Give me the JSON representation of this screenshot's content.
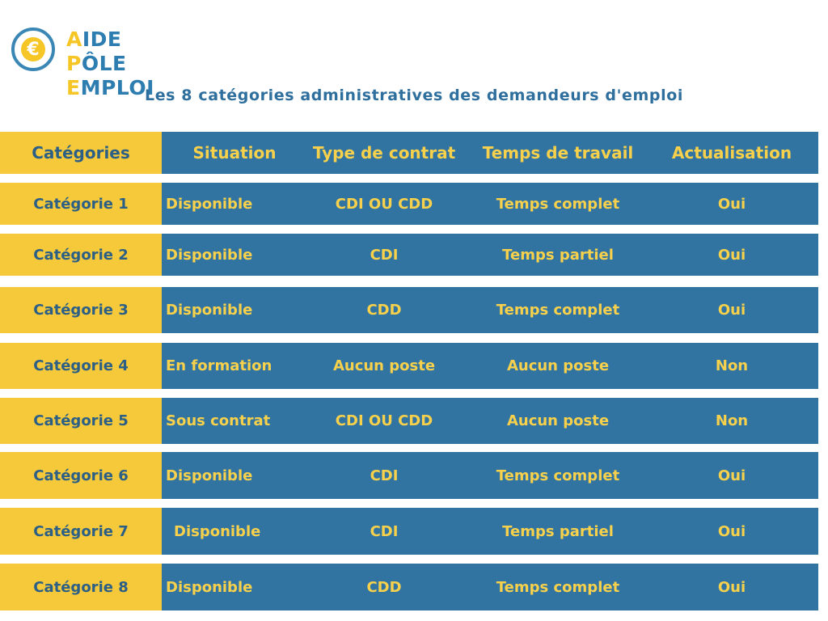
{
  "logo": {
    "line1_initial": "A",
    "line1_rest": "IDE",
    "line2_p": "P",
    "line2_mid": "ÔLE ",
    "line2_e": "E",
    "line2_rest": "MPLOI",
    "symbol": "€",
    "icon": "euro-coin-icon"
  },
  "subtitle": "Les 8 catégories administratives des demandeurs d'emploi",
  "colors": {
    "yellow": "#f6c93a",
    "blue": "#3274a1",
    "text_blue": "#2c5f86",
    "text_yellow": "#f7d14b"
  },
  "table": {
    "headers": [
      "Catégories",
      "Situation",
      "Type de contrat",
      "Temps de travail",
      "Actualisation"
    ],
    "rows": [
      [
        "Catégorie 1",
        "Disponible",
        "CDI OU CDD",
        "Temps complet",
        "Oui"
      ],
      [
        "Catégorie 2",
        "Disponible",
        "CDI",
        "Temps partiel",
        "Oui"
      ],
      [
        "Catégorie 3",
        "Disponible",
        "CDD",
        "Temps  complet",
        "Oui"
      ],
      [
        "Catégorie 4",
        "En formation",
        "Aucun poste",
        "Aucun poste",
        "Non"
      ],
      [
        "Catégorie 5",
        "Sous contrat",
        "CDI OU CDD",
        "Aucun poste",
        "Non"
      ],
      [
        "Catégorie 6",
        "Disponible",
        "CDI",
        "Temps complet",
        "Oui"
      ],
      [
        "Catégorie 7",
        "Disponible",
        "CDI",
        "Temps partiel",
        "Oui"
      ],
      [
        "Catégorie 8",
        "Disponible",
        "CDD",
        "Temps complet",
        "Oui"
      ]
    ]
  }
}
